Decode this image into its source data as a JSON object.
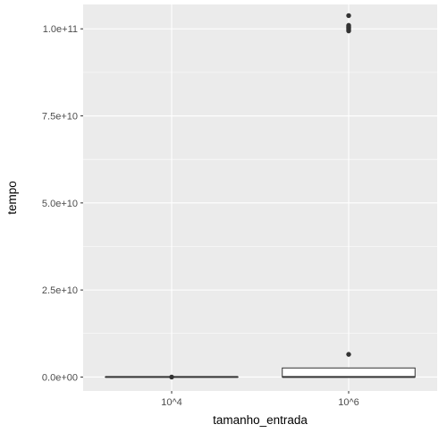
{
  "chart_data": {
    "type": "boxplot",
    "xlabel": "tamanho_entrada",
    "ylabel": "tempo",
    "ylim": [
      -4000000000,
      107000000000
    ],
    "yticks": [
      {
        "value": 0,
        "label": "0.0e+00"
      },
      {
        "value": 25000000000,
        "label": "2.5e+10"
      },
      {
        "value": 50000000000,
        "label": "5.0e+10"
      },
      {
        "value": 75000000000,
        "label": "7.5e+10"
      },
      {
        "value": 100000000000,
        "label": "1.0e+11"
      }
    ],
    "categories": [
      "10^4",
      "10^6"
    ],
    "boxes": [
      {
        "category": "10^4",
        "min": 0,
        "q1": 0,
        "median": 0,
        "q3": 0,
        "max": 0,
        "outliers": [
          0
        ]
      },
      {
        "category": "10^6",
        "min": 0,
        "q1": 0,
        "median": 0,
        "q3": 2600000000,
        "max": 2600000000,
        "outliers": [
          6500000000,
          99400000000,
          99800000000,
          100100000000,
          100400000000,
          100700000000,
          101000000000,
          103800000000
        ]
      }
    ],
    "grid": true,
    "legend": "none",
    "colors": {
      "panel": "#ebebeb",
      "grid_major": "#ffffff",
      "box_fill": "#ffffff",
      "box_line": "#333333",
      "outlier": "#333333"
    }
  }
}
